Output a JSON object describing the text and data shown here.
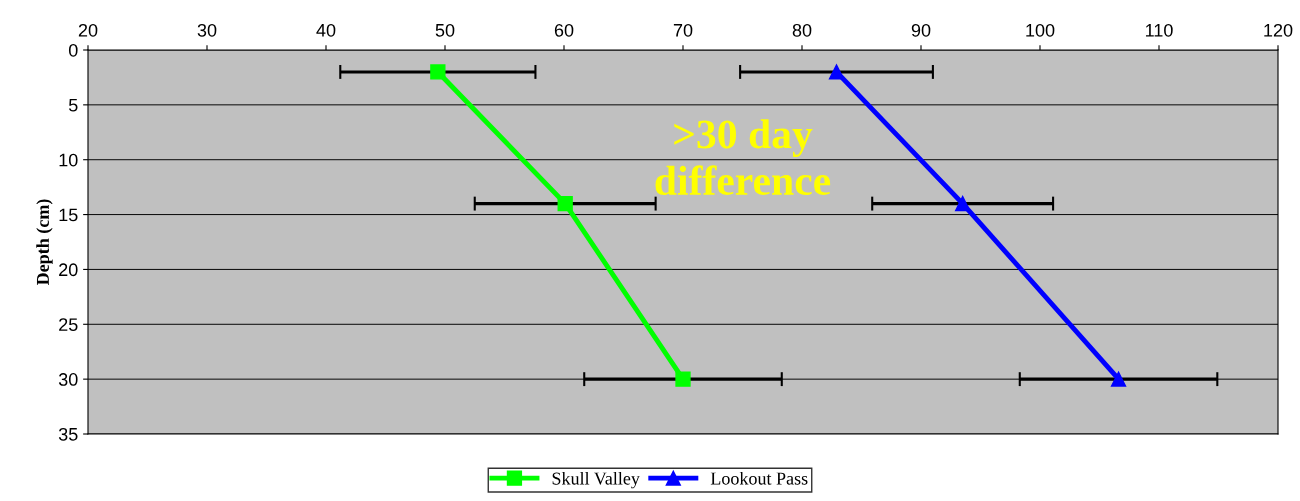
{
  "chart_data": {
    "type": "line",
    "ylabel": "Depth (cm)",
    "xlim": [
      20,
      120
    ],
    "xticks": [
      20,
      30,
      40,
      50,
      60,
      70,
      80,
      90,
      100,
      110,
      120
    ],
    "ylim": [
      35,
      0
    ],
    "yticks": [
      0,
      5,
      10,
      15,
      20,
      25,
      30,
      35
    ],
    "grid": "y",
    "legend": "bottom",
    "annotations": [
      ">30 day difference"
    ],
    "series": [
      {
        "name": "Skull Valley",
        "color": "#00ff00",
        "marker": "square",
        "x": [
          49.4,
          60.1,
          70.0
        ],
        "values": [
          2,
          14,
          30
        ],
        "xerrors": [
          8.2,
          7.6,
          8.3
        ]
      },
      {
        "name": "Lookout Pass",
        "color": "#0000ff",
        "marker": "triangle",
        "x": [
          82.9,
          93.5,
          106.6
        ],
        "values": [
          2,
          14,
          30
        ],
        "xerrors": [
          8.1,
          7.6,
          8.3
        ]
      }
    ]
  }
}
